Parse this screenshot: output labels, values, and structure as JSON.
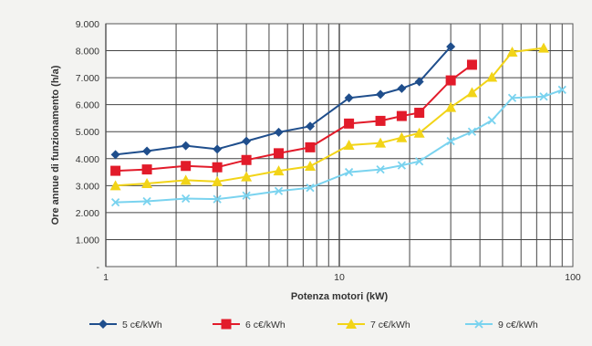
{
  "chart_data": {
    "type": "line",
    "x_scale": "log",
    "xlim": [
      1,
      100
    ],
    "ylim": [
      0,
      9000
    ],
    "x_ticks": [
      "1",
      "10",
      "100"
    ],
    "y_ticks": [
      "-",
      "1.000",
      "2.000",
      "3.000",
      "4.000",
      "5.000",
      "6.000",
      "7.000",
      "8.000",
      "9.000"
    ],
    "xlabel": "Potenza motori (kW)",
    "ylabel": "Ore annue di funzionamento (h/a)",
    "grid": true,
    "legend_position": "bottom",
    "series": [
      {
        "name": "5 c€/kWh",
        "color": "#1f4e8c",
        "marker": "diamond",
        "x": [
          1.1,
          1.5,
          2.2,
          3,
          4,
          5.5,
          7.5,
          11,
          15,
          18.5,
          22,
          30
        ],
        "y": [
          4150,
          4280,
          4480,
          4350,
          4650,
          4980,
          5200,
          6250,
          6380,
          6600,
          6850,
          8150
        ]
      },
      {
        "name": "6 c€/kWh",
        "color": "#e21b2a",
        "marker": "square",
        "x": [
          1.1,
          1.5,
          2.2,
          3,
          4,
          5.5,
          7.5,
          11,
          15,
          18.5,
          22,
          30,
          37
        ],
        "y": [
          3550,
          3600,
          3730,
          3680,
          3950,
          4200,
          4420,
          5300,
          5400,
          5580,
          5700,
          6900,
          7480
        ]
      },
      {
        "name": "7 c€/kWh",
        "color": "#f2d418",
        "marker": "triangle",
        "x": [
          1.1,
          1.5,
          2.2,
          3,
          4,
          5.5,
          7.5,
          11,
          15,
          18.5,
          22,
          30,
          37,
          45,
          55,
          75
        ],
        "y": [
          3000,
          3080,
          3200,
          3150,
          3330,
          3550,
          3720,
          4500,
          4580,
          4780,
          4950,
          5900,
          6450,
          7020,
          7950,
          8100
        ]
      },
      {
        "name": "9 c€/kWh",
        "color": "#7ad3ef",
        "marker": "x",
        "x": [
          1.1,
          1.5,
          2.2,
          3,
          4,
          5.5,
          7.5,
          11,
          15,
          18.5,
          22,
          30,
          37,
          45,
          55,
          75,
          90
        ],
        "y": [
          2380,
          2420,
          2520,
          2500,
          2630,
          2800,
          2920,
          3500,
          3600,
          3750,
          3900,
          4650,
          5000,
          5420,
          6250,
          6300,
          6550
        ]
      }
    ]
  }
}
